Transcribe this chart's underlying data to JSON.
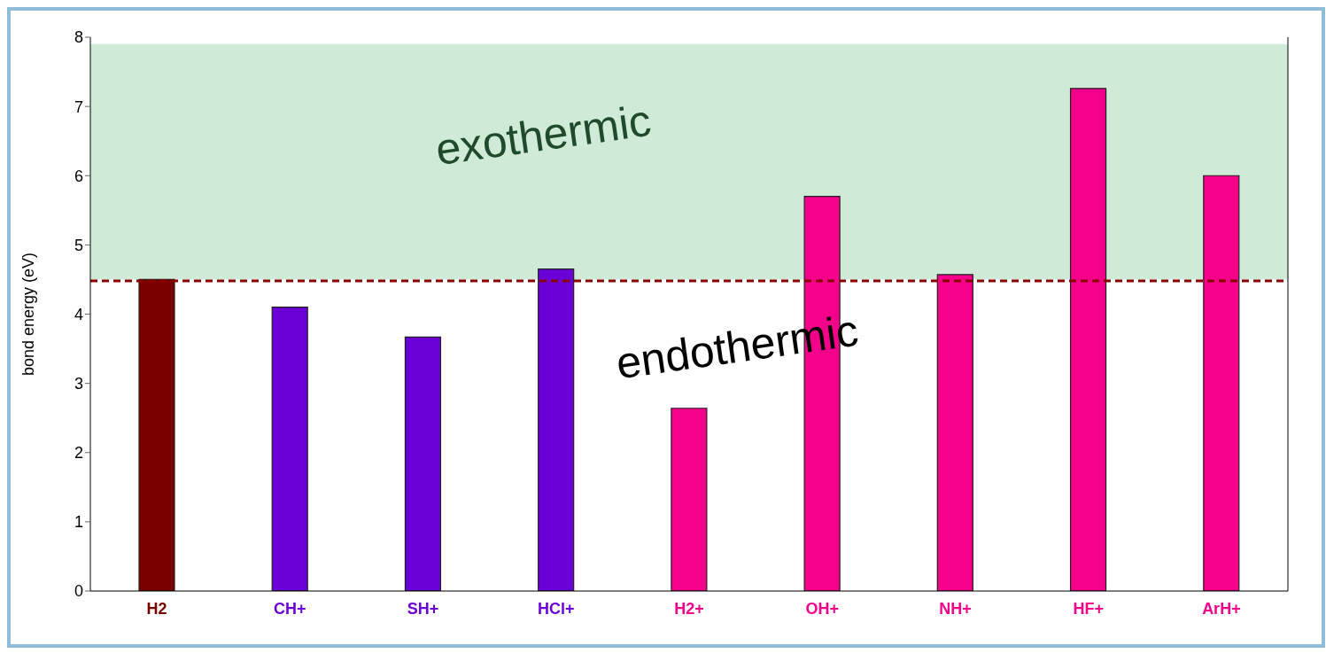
{
  "chart_data": {
    "type": "bar",
    "ylabel": "bond energy (eV)",
    "categories": [
      "H2",
      "CH+",
      "SH+",
      "HCl+",
      "H2+",
      "OH+",
      "NH+",
      "HF+",
      "ArH+"
    ],
    "values": [
      4.5,
      4.1,
      3.67,
      4.65,
      2.64,
      5.7,
      4.57,
      7.26,
      6.0
    ],
    "colors": [
      "#7a0000",
      "#6a00d6",
      "#6a00d6",
      "#6a00d6",
      "#f5008a",
      "#f5008a",
      "#f5008a",
      "#f5008a",
      "#f5008a"
    ],
    "ylim": [
      0,
      8
    ],
    "yticks": [
      0,
      1,
      2,
      3,
      4,
      5,
      6,
      7,
      8
    ],
    "ref_lines": [
      {
        "axis": "y",
        "value": 4.48,
        "color": "#8b0000",
        "line_style": "dashed"
      }
    ],
    "bands": [
      {
        "axis": "y",
        "from": 4.5,
        "to": 7.9,
        "label": "exothermic",
        "color": "#bde3c8"
      }
    ],
    "annotations": [
      "endothermic"
    ]
  }
}
